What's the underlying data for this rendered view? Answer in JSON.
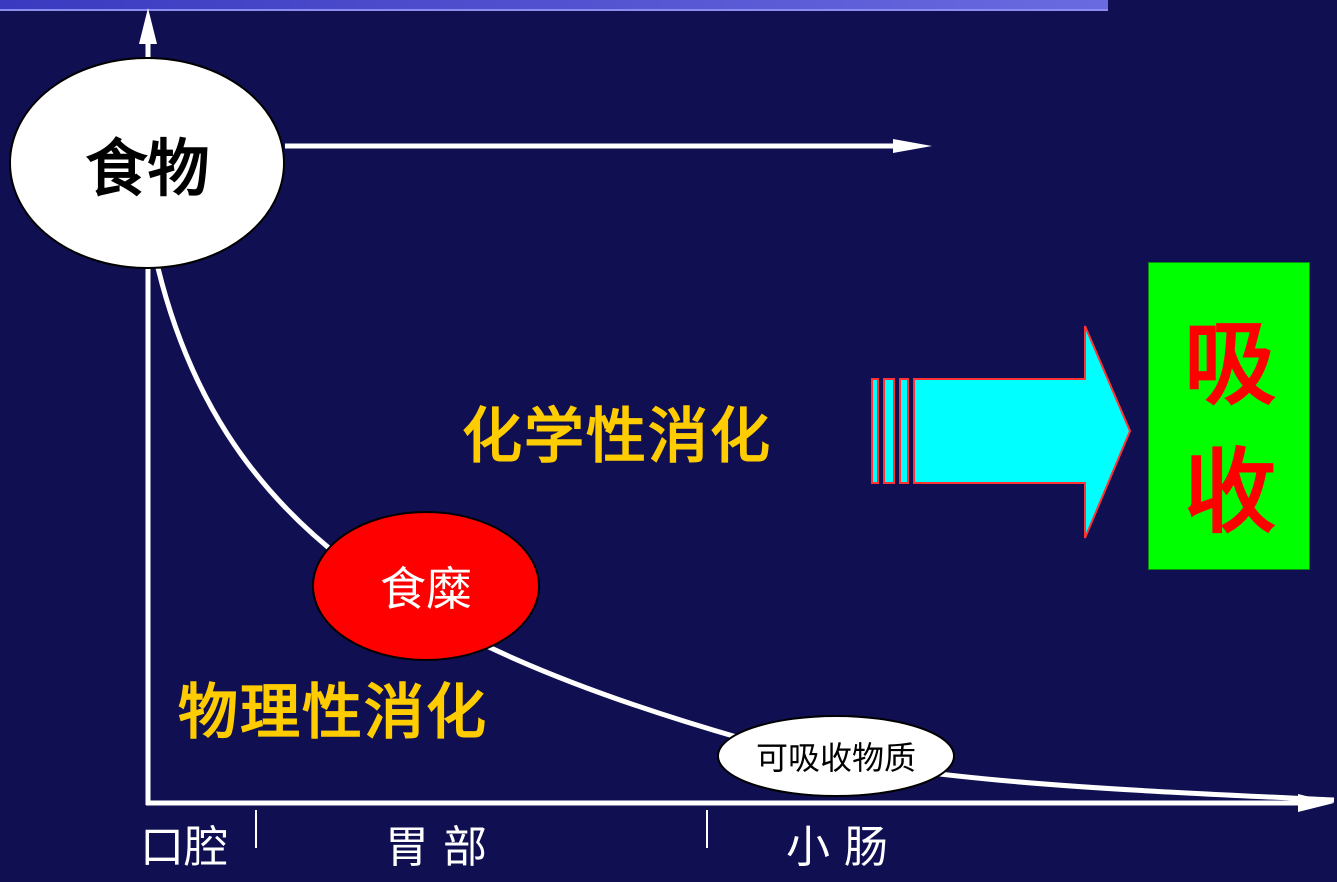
{
  "colors": {
    "background": "#0f0f52",
    "curve": "#ffffff",
    "stage_text": "#ffcc00",
    "arrow_fill": "#00ffff",
    "arrow_outline": "#ff3333",
    "absorb_box": "#00ff00",
    "absorb_text": "#ff0000",
    "chyme_oval": "#ff0000"
  },
  "nodes": {
    "food": "食物",
    "chyme": "食糜",
    "absorbable": "可吸收物质"
  },
  "stages": {
    "chemical": "化学性消化",
    "physical": "物理性消化"
  },
  "absorption": {
    "line1": "吸",
    "line2": "收"
  },
  "axis": {
    "mouth": "口腔",
    "stomach": "胃 部",
    "intestine": "小  肠"
  }
}
